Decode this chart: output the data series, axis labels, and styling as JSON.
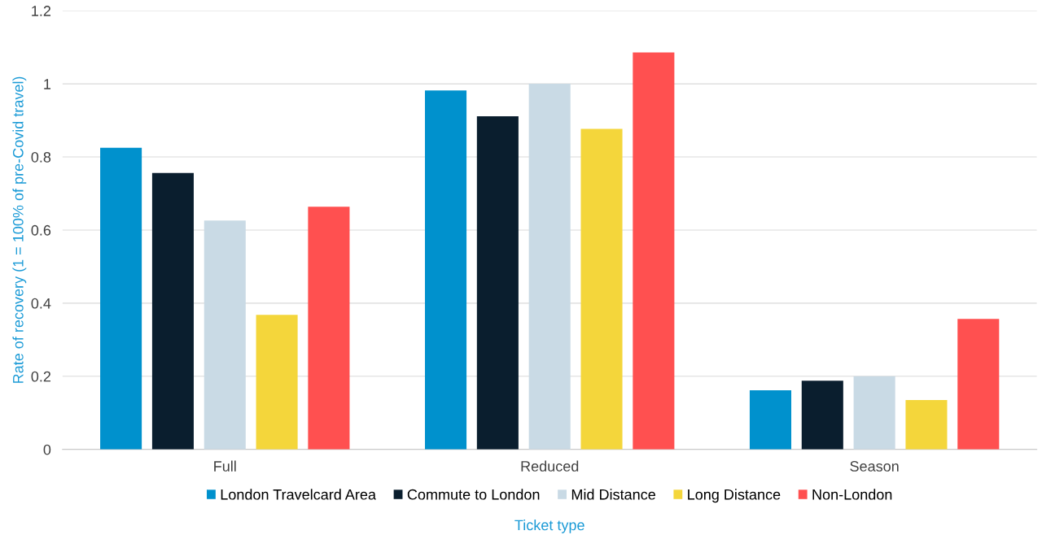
{
  "chart_data": {
    "type": "bar",
    "xlabel": "Ticket type",
    "ylabel": "Rate of recovery (1 = 100% of pre-Covid travel)",
    "categories": [
      "Full",
      "Reduced",
      "Season"
    ],
    "series": [
      {
        "name": "London Travelcard Area",
        "color": "#0091cd",
        "values": [
          0.825,
          0.982,
          0.162
        ]
      },
      {
        "name": "Commute to London",
        "color": "#0a1e2e",
        "values": [
          0.756,
          0.911,
          0.188
        ]
      },
      {
        "name": "Mid Distance",
        "color": "#c9dae5",
        "values": [
          0.626,
          1.0,
          0.2
        ]
      },
      {
        "name": "Long Distance",
        "color": "#f4d63b",
        "values": [
          0.368,
          0.877,
          0.135
        ]
      },
      {
        "name": "Non-London",
        "color": "#ff5050",
        "values": [
          0.664,
          1.086,
          0.357
        ]
      }
    ],
    "ylim": [
      0,
      1.2
    ],
    "yticks": [
      0,
      0.2,
      0.4,
      0.6,
      0.8,
      1,
      1.2
    ],
    "grid": "y",
    "legend": "bottom"
  }
}
